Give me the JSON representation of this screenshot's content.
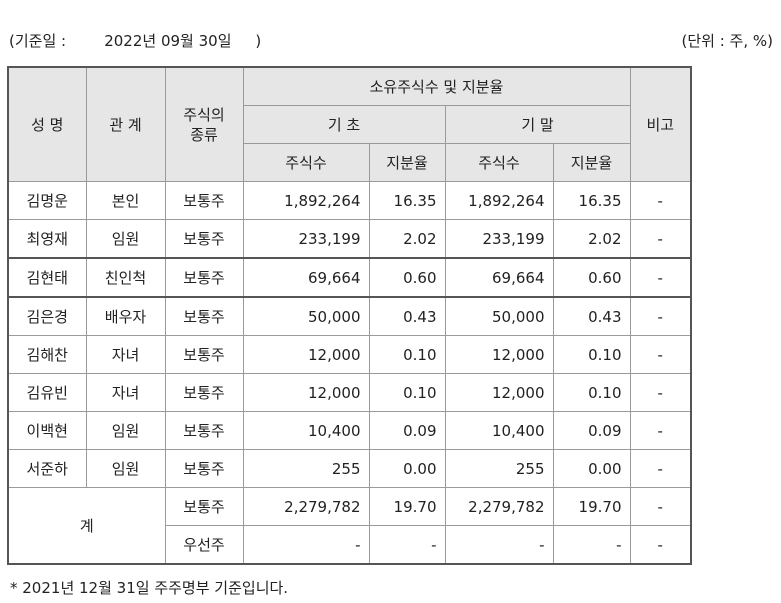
{
  "header": {
    "date_label": "(기준일 :        2022년 09월 30일     )",
    "unit_label": "(단위 : 주, %)"
  },
  "columns": {
    "name": "성 명",
    "relation": "관 계",
    "stock_type": "주식의\n종류",
    "holdings": "소유주식수 및 지분율",
    "start": "기 초",
    "end": "기 말",
    "shares": "주식수",
    "ratio": "지분율",
    "note": "비고"
  },
  "rows": [
    {
      "name": "김명운",
      "relation": "본인",
      "type": "보통주",
      "s_shares": "1,892,264",
      "s_ratio": "16.35",
      "e_shares": "1,892,264",
      "e_ratio": "16.35",
      "note": "-"
    },
    {
      "name": "최영재",
      "relation": "임원",
      "type": "보통주",
      "s_shares": "233,199",
      "s_ratio": "2.02",
      "e_shares": "233,199",
      "e_ratio": "2.02",
      "note": "-"
    },
    {
      "name": "김현태",
      "relation": "친인척",
      "type": "보통주",
      "s_shares": "69,664",
      "s_ratio": "0.60",
      "e_shares": "69,664",
      "e_ratio": "0.60",
      "note": "-"
    },
    {
      "name": "김은경",
      "relation": "배우자",
      "type": "보통주",
      "s_shares": "50,000",
      "s_ratio": "0.43",
      "e_shares": "50,000",
      "e_ratio": "0.43",
      "note": "-"
    },
    {
      "name": "김해찬",
      "relation": "자녀",
      "type": "보통주",
      "s_shares": "12,000",
      "s_ratio": "0.10",
      "e_shares": "12,000",
      "e_ratio": "0.10",
      "note": "-"
    },
    {
      "name": "김유빈",
      "relation": "자녀",
      "type": "보통주",
      "s_shares": "12,000",
      "s_ratio": "0.10",
      "e_shares": "12,000",
      "e_ratio": "0.10",
      "note": "-"
    },
    {
      "name": "이백현",
      "relation": "임원",
      "type": "보통주",
      "s_shares": "10,400",
      "s_ratio": "0.09",
      "e_shares": "10,400",
      "e_ratio": "0.09",
      "note": "-"
    },
    {
      "name": "서준하",
      "relation": "임원",
      "type": "보통주",
      "s_shares": "255",
      "s_ratio": "0.00",
      "e_shares": "255",
      "e_ratio": "0.00",
      "note": "-"
    }
  ],
  "total": {
    "label": "계",
    "common": {
      "type": "보통주",
      "s_shares": "2,279,782",
      "s_ratio": "19.70",
      "e_shares": "2,279,782",
      "e_ratio": "19.70",
      "note": "-"
    },
    "preferred": {
      "type": "우선주",
      "s_shares": "-",
      "s_ratio": "-",
      "e_shares": "-",
      "e_ratio": "-",
      "note": "-"
    }
  },
  "footnote": "* 2021년 12월 31일 주주명부 기준입니다."
}
